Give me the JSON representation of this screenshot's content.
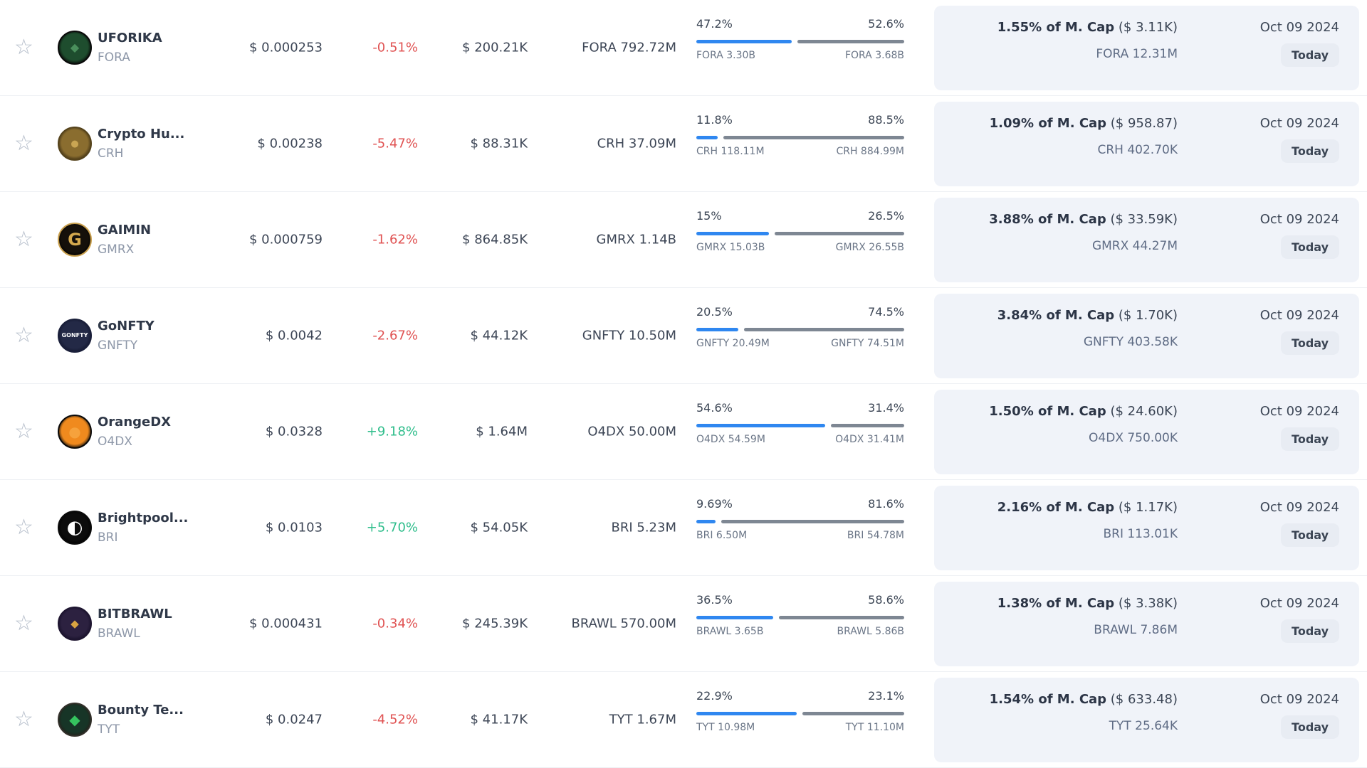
{
  "colors": {
    "bar_filled": "#2f87f0",
    "bar_rest": "#7e8793",
    "change_negative": "#e05353",
    "change_positive": "#2ebd8b",
    "highlight_box_bg": "#f0f3f9",
    "today_pill_bg": "#e8ecf3"
  },
  "rows": [
    {
      "name": "UFORIKA",
      "symbol": "FORA",
      "price": "$ 0.000253",
      "change": "-0.51%",
      "volume": "$ 200.21K",
      "supply": "FORA 792.72M",
      "left_pct": "47.2%",
      "right_pct": "52.6%",
      "left_label": "FORA 3.30B",
      "right_label": "FORA 3.68B",
      "mcap_bold": "1.55% of M. Cap",
      "mcap_paren": " ($ 3.11K)",
      "mcap_amount": "FORA 12.31M",
      "date": "Oct 09 2024",
      "today_label": "Today",
      "logo": {
        "inner": "#1e4d2e",
        "outer": "#050505",
        "glyph": "◆",
        "glyph_color": "#4a8f5c",
        "glyph_size": "16px",
        "ring": "#0a0a0a"
      }
    },
    {
      "name": "Crypto Hu...",
      "symbol": "CRH",
      "price": "$ 0.00238",
      "change": "-5.47%",
      "volume": "$ 88.31K",
      "supply": "CRH 37.09M",
      "left_pct": "11.8%",
      "right_pct": "88.5%",
      "left_label": "CRH 118.11M",
      "right_label": "CRH 884.99M",
      "mcap_bold": "1.09% of M. Cap",
      "mcap_paren": " ($ 958.87)",
      "mcap_amount": "CRH 402.70K",
      "date": "Oct 09 2024",
      "today_label": "Today",
      "logo": {
        "inner": "#8a6d2f",
        "outer": "#3d2e12",
        "glyph": "●",
        "glyph_color": "#c9a553",
        "glyph_size": "13px",
        "ring": "#55431c"
      }
    },
    {
      "name": "GAIMIN",
      "symbol": "GMRX",
      "price": "$ 0.000759",
      "change": "-1.62%",
      "volume": "$ 864.85K",
      "supply": "GMRX 1.14B",
      "left_pct": "15%",
      "right_pct": "26.5%",
      "left_label": "GMRX 15.03B",
      "right_label": "GMRX 26.55B",
      "mcap_bold": "3.88% of M. Cap",
      "mcap_paren": " ($ 33.59K)",
      "mcap_amount": "GMRX 44.27M",
      "date": "Oct 09 2024",
      "today_label": "Today",
      "logo": {
        "inner": "#15100a",
        "outer": "#000000",
        "glyph": "G",
        "glyph_color": "#d4a94e",
        "glyph_size": "24px",
        "ring": "#c9a04e"
      }
    },
    {
      "name": "GoNFTY",
      "symbol": "GNFTY",
      "price": "$ 0.0042",
      "change": "-2.67%",
      "volume": "$ 44.12K",
      "supply": "GNFTY 10.50M",
      "left_pct": "20.5%",
      "right_pct": "74.5%",
      "left_label": "GNFTY 20.49M",
      "right_label": "GNFTY 74.51M",
      "mcap_bold": "3.84% of M. Cap",
      "mcap_paren": " ($ 1.70K)",
      "mcap_amount": "GNFTY 403.58K",
      "date": "Oct 09 2024",
      "today_label": "Today",
      "logo": {
        "inner": "#232946",
        "outer": "#141830",
        "glyph": "GONFTY",
        "glyph_color": "#ffffff",
        "glyph_size": "8px",
        "ring": "#1a1f3a"
      }
    },
    {
      "name": "OrangeDX",
      "symbol": "O4DX",
      "price": "$ 0.0328",
      "change": "+9.18%",
      "volume": "$ 1.64M",
      "supply": "O4DX 50.00M",
      "left_pct": "54.6%",
      "right_pct": "31.4%",
      "left_label": "O4DX 54.59M",
      "right_label": "O4DX 31.41M",
      "mcap_bold": "1.50% of M. Cap",
      "mcap_paren": " ($ 24.60K)",
      "mcap_amount": "O4DX 750.00K",
      "date": "Oct 09 2024",
      "today_label": "Today",
      "logo": {
        "inner": "#f08a1e",
        "outer": "#0a0a0a",
        "glyph": "●",
        "glyph_color": "#f6a23c",
        "glyph_size": "20px",
        "ring": "#0a0a0a"
      }
    },
    {
      "name": "Brightpool...",
      "symbol": "BRI",
      "price": "$ 0.0103",
      "change": "+5.70%",
      "volume": "$ 54.05K",
      "supply": "BRI 5.23M",
      "left_pct": "9.69%",
      "right_pct": "81.6%",
      "left_label": "BRI 6.50M",
      "right_label": "BRI 54.78M",
      "mcap_bold": "2.16% of M. Cap",
      "mcap_paren": " ($ 1.17K)",
      "mcap_amount": "BRI 113.01K",
      "date": "Oct 09 2024",
      "today_label": "Today",
      "logo": {
        "inner": "#0c0c0c",
        "outer": "#000000",
        "glyph": "◐",
        "glyph_color": "#ffffff",
        "glyph_size": "26px",
        "ring": "#0a0a0a"
      }
    },
    {
      "name": "BITBRAWL",
      "symbol": "BRAWL",
      "price": "$ 0.000431",
      "change": "-0.34%",
      "volume": "$ 245.39K",
      "supply": "BRAWL 570.00M",
      "left_pct": "36.5%",
      "right_pct": "58.6%",
      "left_label": "BRAWL 3.65B",
      "right_label": "BRAWL 5.86B",
      "mcap_bold": "1.38% of M. Cap",
      "mcap_paren": " ($ 3.38K)",
      "mcap_amount": "BRAWL 7.86M",
      "date": "Oct 09 2024",
      "today_label": "Today",
      "logo": {
        "inner": "#2c2140",
        "outer": "#17102a",
        "glyph": "◆",
        "glyph_color": "#d9a441",
        "glyph_size": "15px",
        "ring": "#1e1530"
      }
    },
    {
      "name": "Bounty Te...",
      "symbol": "TYT",
      "price": "$ 0.0247",
      "change": "-4.52%",
      "volume": "$ 41.17K",
      "supply": "TYT 1.67M",
      "left_pct": "22.9%",
      "right_pct": "23.1%",
      "left_label": "TYT 10.98M",
      "right_label": "TYT 11.10M",
      "mcap_bold": "1.54% of M. Cap",
      "mcap_paren": " ($ 633.48)",
      "mcap_amount": "TYT 25.64K",
      "date": "Oct 09 2024",
      "today_label": "Today",
      "logo": {
        "inner": "#173527",
        "outer": "#241f1a",
        "glyph": "◆",
        "glyph_color": "#35c45f",
        "glyph_size": "20px",
        "ring": "#33302a"
      }
    }
  ]
}
